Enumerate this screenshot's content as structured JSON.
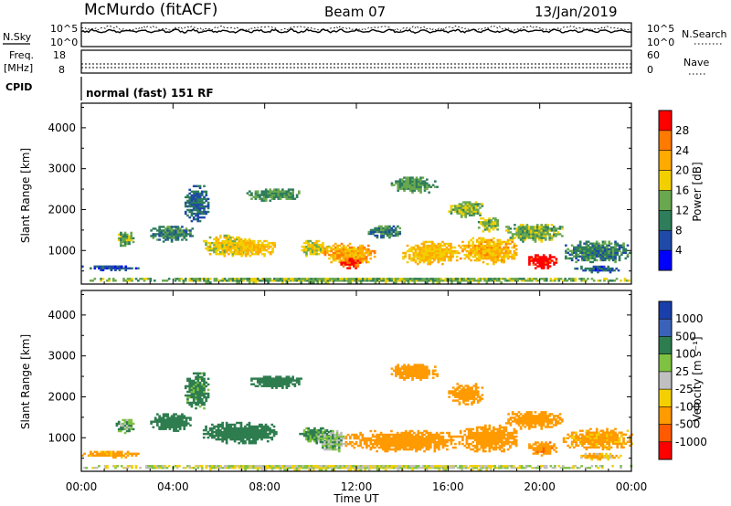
{
  "header": {
    "station": "McMurdo (fitACF)",
    "beam": "Beam 07",
    "date": "13/Jan/2019"
  },
  "noise_panel": {
    "left_label": "N.Sky",
    "right_label": "N.Search",
    "left_ticks": [
      "10^5",
      "10^0"
    ],
    "right_ticks": [
      "10^5",
      "10^0"
    ]
  },
  "freq_panel": {
    "left_label_1": "Freq.",
    "left_label_2": "[MHz]",
    "right_label": "Nave",
    "left_ticks": [
      "18",
      "8"
    ],
    "right_ticks": [
      "60",
      "0"
    ]
  },
  "cpid_panel": {
    "label": "CPID",
    "mode_text": "normal (fast) 151 RF"
  },
  "x_axis": {
    "title": "Time UT",
    "ticks": [
      "00:00",
      "04:00",
      "08:00",
      "12:00",
      "16:00",
      "20:00",
      "00:00"
    ]
  },
  "power_colorbar": {
    "title": "Power [dB]",
    "labels": [
      "28",
      "24",
      "20",
      "16",
      "12",
      "8",
      "4"
    ],
    "colors": [
      "#ff0000",
      "#ff7a00",
      "#ffaa00",
      "#f2d000",
      "#6aa84f",
      "#2e7d5b",
      "#1f4aa8",
      "#0000ff"
    ]
  },
  "velocity_colorbar": {
    "title": "Velocity [m s⁻¹]",
    "labels": [
      "1000",
      "500",
      "100",
      "25",
      "-25",
      "-100",
      "-500",
      "-1000"
    ],
    "colors": [
      "#1a3faa",
      "#3a62b8",
      "#2e7d4f",
      "#7fc242",
      "#c0c0c0",
      "#f5d000",
      "#ff9a00",
      "#ff5a00",
      "#ff0000"
    ]
  },
  "chart_data": [
    {
      "type": "heatmap",
      "quantity": "power",
      "ylabel": "Slant Range [km]",
      "xlabel": "Time UT",
      "xlim_hours": [
        0,
        24
      ],
      "ylim_km": [
        180,
        4600
      ],
      "yticks": [
        1000,
        2000,
        3000,
        4000
      ],
      "zlim_db": [
        0,
        32
      ],
      "echo_regions": [
        {
          "t0": 0.0,
          "t1": 24.0,
          "r0": 200,
          "r1": 330,
          "v": 14
        },
        {
          "t0": 0.0,
          "t1": 2.5,
          "r0": 500,
          "r1": 620,
          "v": 6
        },
        {
          "t0": 1.5,
          "t1": 2.3,
          "r0": 1100,
          "r1": 1450,
          "v": 14
        },
        {
          "t0": 3.0,
          "t1": 4.8,
          "r0": 1200,
          "r1": 1600,
          "v": 10
        },
        {
          "t0": 4.5,
          "t1": 5.5,
          "r0": 1700,
          "r1": 2600,
          "v": 8
        },
        {
          "t0": 5.3,
          "t1": 7.5,
          "r0": 850,
          "r1": 1350,
          "v": 18
        },
        {
          "t0": 6.5,
          "t1": 8.5,
          "r0": 850,
          "r1": 1250,
          "v": 20
        },
        {
          "t0": 7.2,
          "t1": 9.6,
          "r0": 2200,
          "r1": 2500,
          "v": 12
        },
        {
          "t0": 9.5,
          "t1": 10.8,
          "r0": 850,
          "r1": 1250,
          "v": 17
        },
        {
          "t0": 10.5,
          "t1": 12.8,
          "r0": 650,
          "r1": 1150,
          "v": 22
        },
        {
          "t0": 11.3,
          "t1": 12.2,
          "r0": 550,
          "r1": 800,
          "v": 30
        },
        {
          "t0": 12.5,
          "t1": 14.0,
          "r0": 1300,
          "r1": 1600,
          "v": 10
        },
        {
          "t0": 13.5,
          "t1": 15.5,
          "r0": 2400,
          "r1": 2800,
          "v": 12
        },
        {
          "t0": 14.0,
          "t1": 16.5,
          "r0": 650,
          "r1": 1200,
          "v": 20
        },
        {
          "t0": 16.0,
          "t1": 17.5,
          "r0": 1800,
          "r1": 2200,
          "v": 14
        },
        {
          "t0": 16.5,
          "t1": 19.0,
          "r0": 650,
          "r1": 1300,
          "v": 21
        },
        {
          "t0": 17.3,
          "t1": 18.2,
          "r0": 1450,
          "r1": 1800,
          "v": 15
        },
        {
          "t0": 18.5,
          "t1": 21.0,
          "r0": 1200,
          "r1": 1650,
          "v": 14
        },
        {
          "t0": 19.5,
          "t1": 20.7,
          "r0": 550,
          "r1": 900,
          "v": 31
        },
        {
          "t0": 21.0,
          "t1": 24.0,
          "r0": 700,
          "r1": 1200,
          "v": 10
        },
        {
          "t0": 21.5,
          "t1": 23.5,
          "r0": 450,
          "r1": 600,
          "v": 7
        }
      ]
    },
    {
      "type": "heatmap",
      "quantity": "velocity",
      "ylabel": "Slant Range [km]",
      "xlabel": "Time UT",
      "xlim_hours": [
        0,
        24
      ],
      "ylim_km": [
        180,
        4600
      ],
      "yticks": [
        1000,
        2000,
        3000,
        4000
      ],
      "zlim_ms": [
        -1000,
        1000
      ],
      "echo_regions": [
        {
          "t0": 0.0,
          "t1": 24.0,
          "r0": 200,
          "r1": 330,
          "v": 0
        },
        {
          "t0": 0.0,
          "t1": 2.5,
          "r0": 500,
          "r1": 650,
          "v": -150
        },
        {
          "t0": 1.5,
          "t1": 2.3,
          "r0": 1100,
          "r1": 1450,
          "v": 80
        },
        {
          "t0": 3.0,
          "t1": 4.8,
          "r0": 1150,
          "r1": 1600,
          "v": 200
        },
        {
          "t0": 4.5,
          "t1": 5.5,
          "r0": 1700,
          "r1": 2600,
          "v": 150
        },
        {
          "t0": 5.3,
          "t1": 8.5,
          "r0": 850,
          "r1": 1350,
          "v": 250
        },
        {
          "t0": 7.2,
          "t1": 9.6,
          "r0": 2200,
          "r1": 2500,
          "v": 300
        },
        {
          "t0": 9.5,
          "t1": 10.8,
          "r0": 850,
          "r1": 1250,
          "v": 120
        },
        {
          "t0": 10.3,
          "t1": 11.5,
          "r0": 650,
          "r1": 1150,
          "v": 60
        },
        {
          "t0": 11.5,
          "t1": 16.5,
          "r0": 650,
          "r1": 1150,
          "v": -300
        },
        {
          "t0": 13.5,
          "t1": 15.5,
          "r0": 2400,
          "r1": 2800,
          "v": -200
        },
        {
          "t0": 16.0,
          "t1": 17.5,
          "r0": 1800,
          "r1": 2300,
          "v": -400
        },
        {
          "t0": 16.5,
          "t1": 19.0,
          "r0": 650,
          "r1": 1300,
          "v": -300
        },
        {
          "t0": 18.5,
          "t1": 21.0,
          "r0": 1200,
          "r1": 1650,
          "v": -250
        },
        {
          "t0": 19.5,
          "t1": 20.7,
          "r0": 550,
          "r1": 900,
          "v": -450
        },
        {
          "t0": 21.0,
          "t1": 24.0,
          "r0": 700,
          "r1": 1200,
          "v": -150
        },
        {
          "t0": 21.5,
          "t1": 23.5,
          "r0": 450,
          "r1": 600,
          "v": -80
        }
      ]
    }
  ]
}
